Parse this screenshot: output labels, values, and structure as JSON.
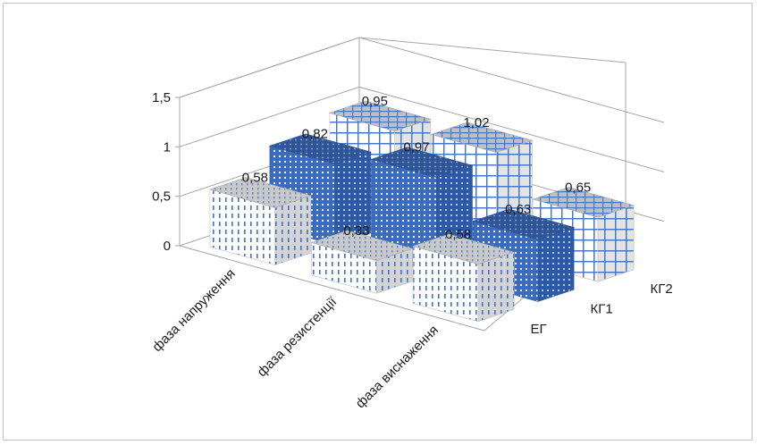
{
  "chart_data": {
    "type": "bar",
    "subtype": "3d-column",
    "title": "",
    "categories": [
      "фаза напруження",
      "фаза резистенції",
      "фаза виснаження"
    ],
    "series": [
      {
        "name": "ЕГ",
        "values": [
          0.58,
          0.33,
          0.58
        ],
        "labels": [
          "0,58",
          "0,33",
          "0,58"
        ],
        "pattern": "dashes",
        "color": "#4472c4"
      },
      {
        "name": "КГ1",
        "values": [
          0.82,
          0.97,
          0.63
        ],
        "labels": [
          "0,82",
          "0,97",
          "0,63"
        ],
        "pattern": "dots",
        "color": "#4472c4"
      },
      {
        "name": "КГ2",
        "values": [
          0.95,
          1.02,
          0.65
        ],
        "labels": [
          "0,95",
          "1,02",
          "0,65"
        ],
        "pattern": "grid",
        "color": "#4472c4"
      }
    ],
    "ylim": [
      0,
      1.5
    ],
    "yticks": [
      "0",
      "0,5",
      "1",
      "1,5"
    ],
    "ytick_values": [
      0,
      0.5,
      1,
      1.5
    ],
    "grid": true,
    "legend": "none"
  }
}
